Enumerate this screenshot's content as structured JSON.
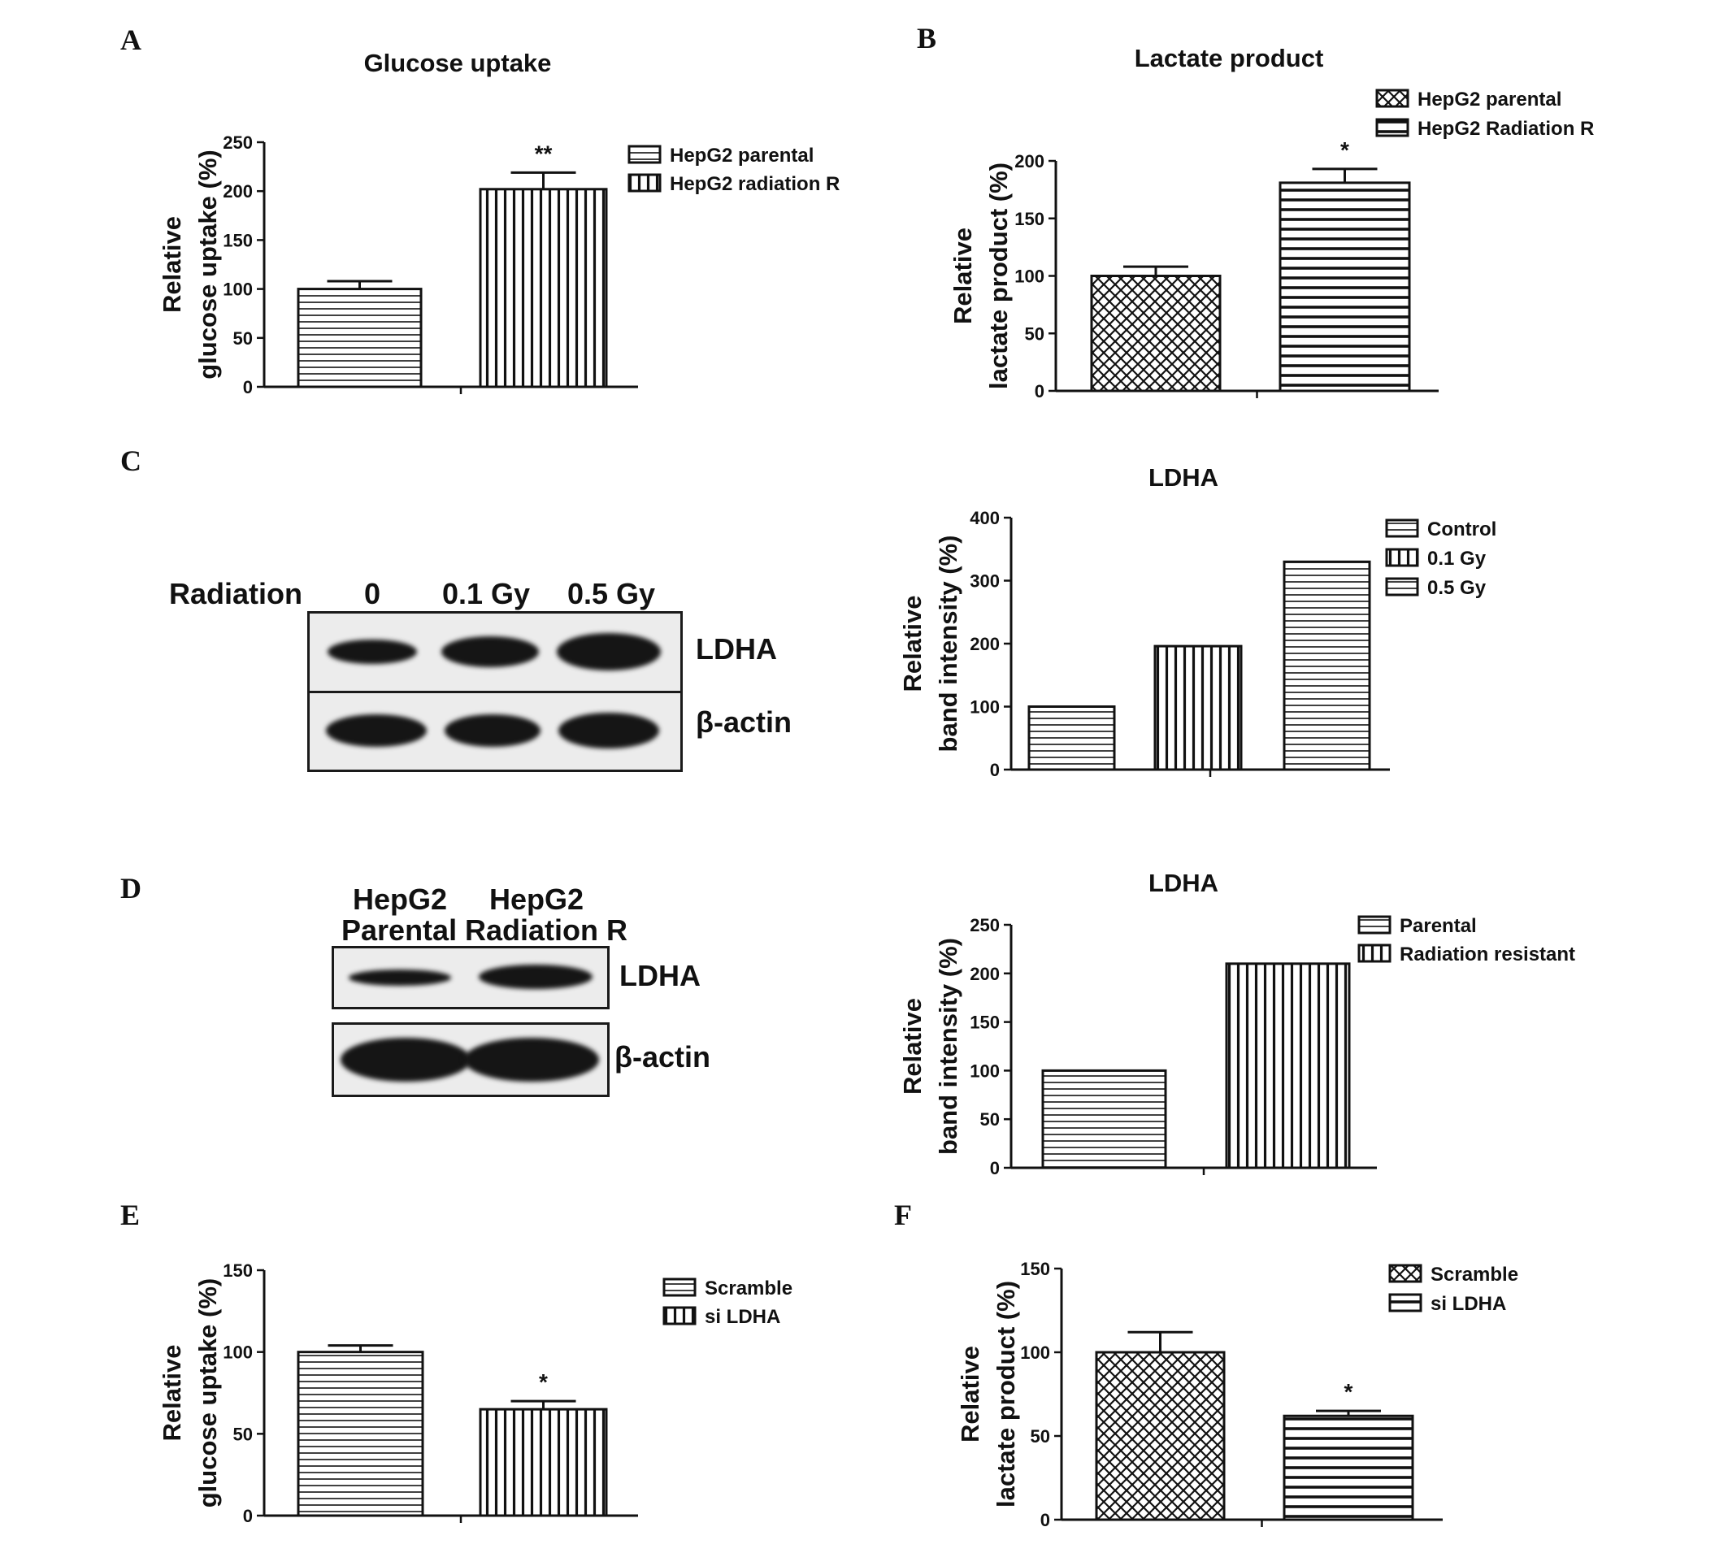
{
  "panels": {
    "A": "A",
    "B": "B",
    "C": "C",
    "D": "D",
    "E": "E",
    "F": "F"
  },
  "colors": {
    "ink": "#111111",
    "blot_bg": "#ececec",
    "band": "#151515"
  },
  "blot_c": {
    "radiation_label": "Radiation",
    "lanes": [
      "0",
      "0.1 Gy",
      "0.5 Gy"
    ],
    "row1_label": "LDHA",
    "row2_label": "β-actin",
    "ldha_intensity": [
      0.55,
      0.75,
      1.0
    ],
    "actin_intensity": [
      1.0,
      0.95,
      1.0
    ]
  },
  "blot_d": {
    "lane1_line1": "HepG2",
    "lane1_line2": "Parental",
    "lane2_line1": "HepG2",
    "lane2_line2": "Radiation R",
    "row1_label": "LDHA",
    "row2_label": "β-actin",
    "ldha_intensity": [
      0.45,
      0.9
    ],
    "actin_intensity": [
      1.0,
      1.0
    ]
  },
  "chart_data": [
    {
      "panel": "A",
      "type": "bar",
      "title": "Glucose uptake",
      "ylabel_line1": "Relative",
      "ylabel_line2": "glucose uptake (%)",
      "ylim": [
        0,
        250
      ],
      "yticks": [
        0,
        50,
        100,
        150,
        200,
        250
      ],
      "series": [
        {
          "name": "HepG2 parental",
          "value": 100,
          "error": 8,
          "pattern": "hstripe",
          "annotation": ""
        },
        {
          "name": "HepG2 radiation R",
          "value": 202,
          "error": 17,
          "pattern": "vstripe",
          "annotation": "**"
        }
      ]
    },
    {
      "panel": "B",
      "type": "bar",
      "title": "Lactate product",
      "ylabel_line1": "Relative",
      "ylabel_line2": "lactate product (%)",
      "ylim": [
        0,
        200
      ],
      "yticks": [
        0,
        50,
        100,
        150,
        200
      ],
      "series": [
        {
          "name": "HepG2 parental",
          "value": 100,
          "error": 8,
          "pattern": "crosshatch",
          "annotation": ""
        },
        {
          "name": "HepG2 Radiation R",
          "value": 181,
          "error": 12,
          "pattern": "hbold",
          "annotation": "*"
        }
      ]
    },
    {
      "panel": "C",
      "type": "bar",
      "title": "LDHA",
      "ylabel_line1": "Relative",
      "ylabel_line2": "band intensity (%)",
      "ylim": [
        0,
        400
      ],
      "yticks": [
        0,
        100,
        200,
        300,
        400
      ],
      "series": [
        {
          "name": "Control",
          "value": 100,
          "error": 0,
          "pattern": "hstripe",
          "annotation": ""
        },
        {
          "name": "0.1 Gy",
          "value": 196,
          "error": 0,
          "pattern": "vstripe",
          "annotation": ""
        },
        {
          "name": "0.5 Gy",
          "value": 330,
          "error": 0,
          "pattern": "hstripe",
          "annotation": ""
        }
      ]
    },
    {
      "panel": "D",
      "type": "bar",
      "title": "LDHA",
      "ylabel_line1": "Relative",
      "ylabel_line2": "band intensity (%)",
      "ylim": [
        0,
        250
      ],
      "yticks": [
        0,
        50,
        100,
        150,
        200,
        250
      ],
      "series": [
        {
          "name": "Parental",
          "value": 100,
          "error": 0,
          "pattern": "hstripe",
          "annotation": ""
        },
        {
          "name": "Radiation resistant",
          "value": 210,
          "error": 0,
          "pattern": "vstripe",
          "annotation": ""
        }
      ]
    },
    {
      "panel": "E",
      "type": "bar",
      "title": "",
      "ylabel_line1": "Relative",
      "ylabel_line2": "glucose uptake (%)",
      "ylim": [
        0,
        150
      ],
      "yticks": [
        0,
        50,
        100,
        150
      ],
      "series": [
        {
          "name": "Scramble",
          "value": 100,
          "error": 4,
          "pattern": "hstripe",
          "annotation": ""
        },
        {
          "name": "si LDHA",
          "value": 65,
          "error": 5,
          "pattern": "vstripe",
          "annotation": "*"
        }
      ]
    },
    {
      "panel": "F",
      "type": "bar",
      "title": "",
      "ylabel_line1": "Relative",
      "ylabel_line2": "lactate product (%)",
      "ylim": [
        0,
        150
      ],
      "yticks": [
        0,
        50,
        100,
        150
      ],
      "series": [
        {
          "name": "Scramble",
          "value": 100,
          "error": 12,
          "pattern": "crosshatch",
          "annotation": ""
        },
        {
          "name": "si LDHA",
          "value": 62,
          "error": 3,
          "pattern": "hbold",
          "annotation": "*"
        }
      ]
    }
  ]
}
